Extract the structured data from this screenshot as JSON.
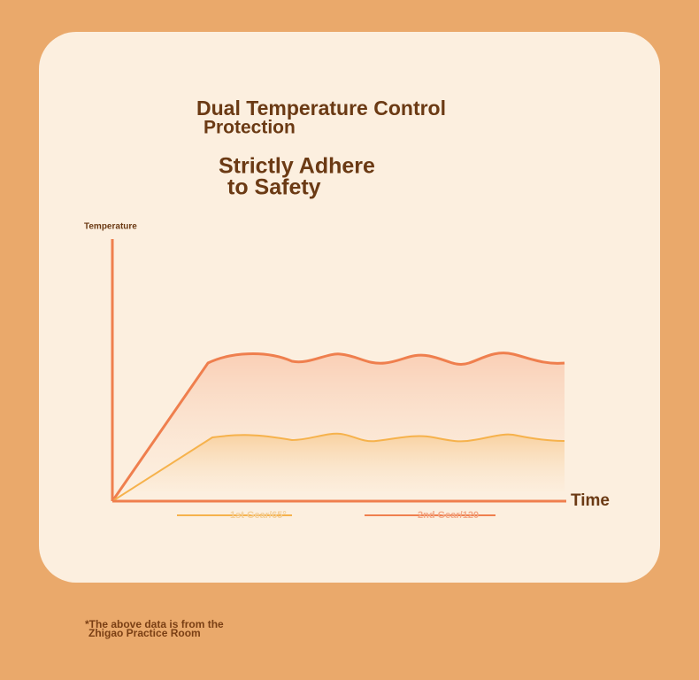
{
  "header": {
    "title_lines": [
      "Dual Temperature Control",
      "Protection"
    ],
    "subtitle_lines": [
      "Strictly Adhere",
      "to Safety"
    ]
  },
  "diagram": {
    "y_axis_label": "Temperature",
    "x_axis_label": "Time",
    "legend": [
      "1st Gear/65°",
      "2nd Gear/120"
    ]
  },
  "footnote_lines": [
    "*The above data is from the",
    "Zhigao Practice Room"
  ]
}
